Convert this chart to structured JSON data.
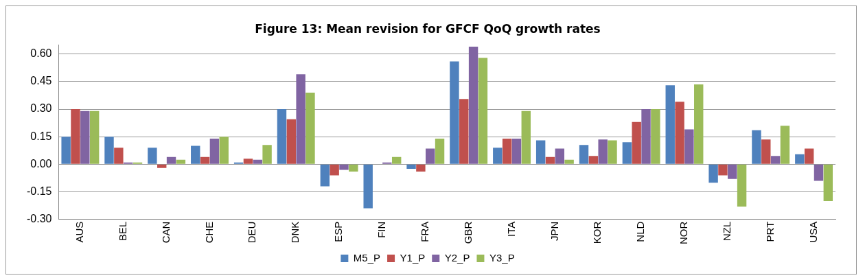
{
  "chart_data": {
    "type": "bar",
    "title": "Figure 13: Mean revision for GFCF QoQ growth rates",
    "categories": [
      "AUS",
      "BEL",
      "CAN",
      "CHE",
      "DEU",
      "DNK",
      "ESP",
      "FIN",
      "FRA",
      "GBR",
      "ITA",
      "JPN",
      "KOR",
      "NLD",
      "NOR",
      "NZL",
      "PRT",
      "USA"
    ],
    "series": [
      {
        "name": "M5_P",
        "color": "#4f81bd",
        "values": [
          0.15,
          0.15,
          0.09,
          0.1,
          0.01,
          0.3,
          -0.12,
          -0.24,
          -0.025,
          0.56,
          0.09,
          0.13,
          0.105,
          0.12,
          0.43,
          -0.1,
          0.185,
          0.055
        ]
      },
      {
        "name": "Y1_P",
        "color": "#c0504d",
        "values": [
          0.3,
          0.09,
          -0.02,
          0.04,
          0.03,
          0.245,
          -0.06,
          0,
          -0.04,
          0.355,
          0.14,
          0.04,
          0.045,
          0.23,
          0.34,
          -0.06,
          0.135,
          0.085
        ]
      },
      {
        "name": "Y2_P",
        "color": "#8064a2",
        "values": [
          0.29,
          0.01,
          0.04,
          0.14,
          0.025,
          0.49,
          -0.03,
          0.01,
          0.085,
          0.64,
          0.14,
          0.085,
          0.135,
          0.3,
          0.19,
          -0.08,
          0.045,
          -0.09
        ]
      },
      {
        "name": "Y3_P",
        "color": "#9bbb59",
        "values": [
          0.29,
          0.01,
          0.025,
          0.15,
          0.105,
          0.39,
          -0.04,
          0.04,
          0.14,
          0.58,
          0.29,
          0.025,
          0.13,
          0.3,
          0.435,
          -0.23,
          0.21,
          -0.2
        ]
      }
    ],
    "ylim": [
      -0.3,
      0.65
    ],
    "yticks": [
      {
        "value": -0.3,
        "label": "-0.30"
      },
      {
        "value": -0.15,
        "label": "-0.15"
      },
      {
        "value": 0,
        "label": "0.00"
      },
      {
        "value": 0.15,
        "label": "0.15"
      },
      {
        "value": 0.3,
        "label": "0.30"
      },
      {
        "value": 0.45,
        "label": "0.45"
      },
      {
        "value": 0.6,
        "label": "0.60"
      }
    ],
    "grid": "y",
    "legend": "bottom"
  }
}
